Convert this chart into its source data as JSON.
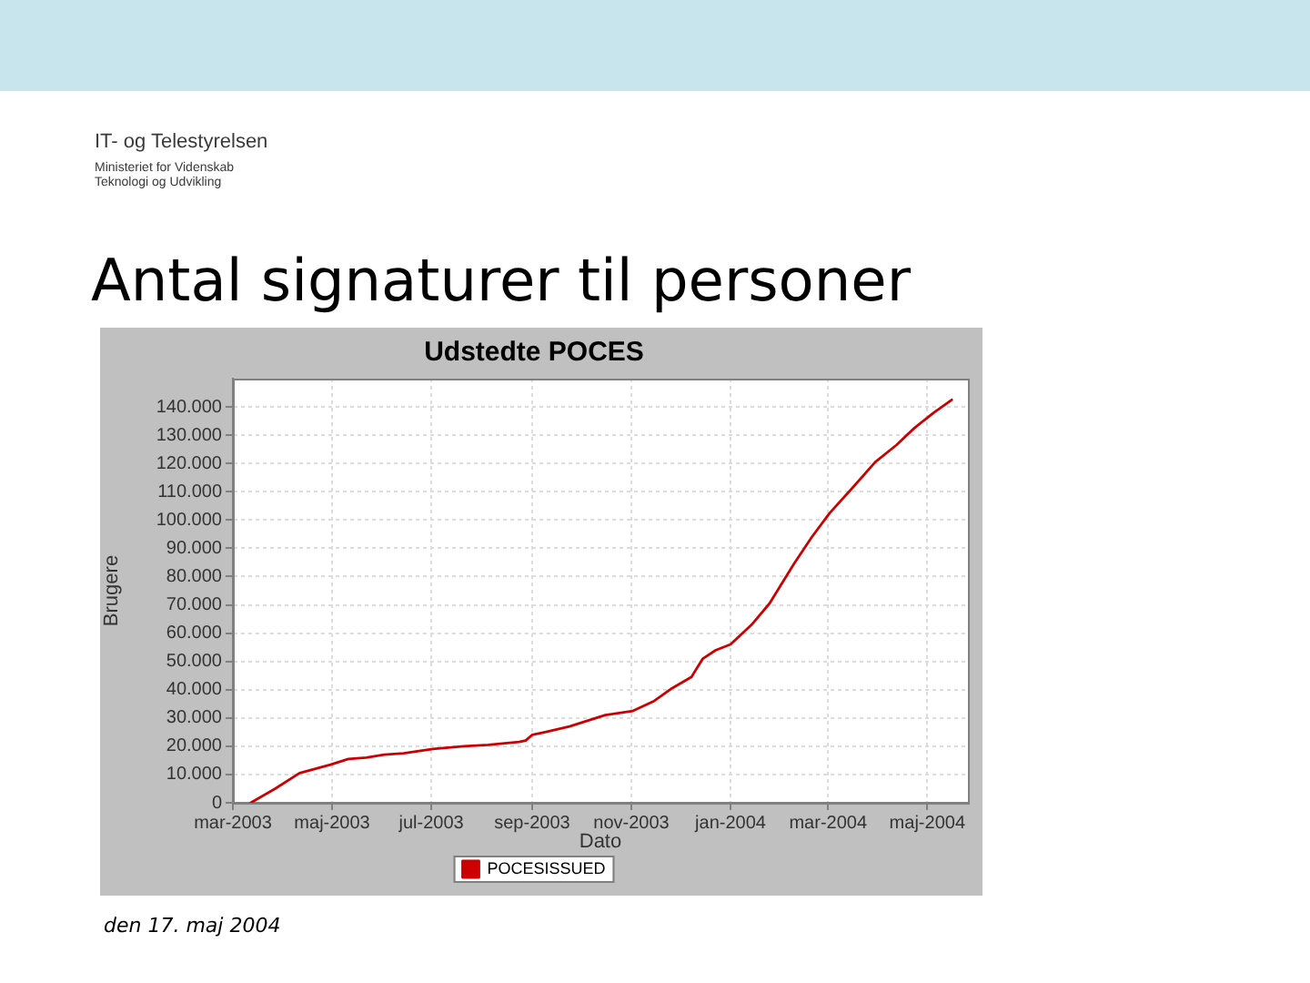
{
  "chart_data": {
    "type": "line",
    "title": "Antal signaturer til personer",
    "subtitle": "Udstedte POCES",
    "xlabel": "Dato",
    "ylabel": "Brugere",
    "x": [
      "2003-03-12",
      "2003-03-27",
      "2003-04-11",
      "2003-04-30",
      "2003-05-11",
      "2003-05-22",
      "2003-06-02",
      "2003-06-14",
      "2003-07-02",
      "2003-07-21",
      "2003-08-05",
      "2003-08-24",
      "2003-08-28",
      "2003-09-01",
      "2003-09-09",
      "2003-09-24",
      "2003-10-05",
      "2003-10-16",
      "2003-11-02",
      "2003-11-15",
      "2003-11-26",
      "2003-12-08",
      "2003-12-15",
      "2003-12-23",
      "2004-01-01",
      "2004-01-14",
      "2004-01-25",
      "2004-02-09",
      "2004-02-20",
      "2004-03-02",
      "2004-03-17",
      "2004-03-30",
      "2004-04-12",
      "2004-04-23",
      "2004-05-05",
      "2004-05-16"
    ],
    "series": [
      {
        "name": "POCESISSUED",
        "color": "#cc0000",
        "values": [
          0,
          5000,
          10500,
          13500,
          15500,
          16000,
          17000,
          17500,
          19000,
          20000,
          20500,
          21500,
          22000,
          24000,
          25000,
          27000,
          29000,
          31000,
          32500,
          36000,
          40500,
          44500,
          51000,
          54000,
          56000,
          63000,
          70500,
          84500,
          94000,
          102500,
          112000,
          120500,
          126500,
          132500,
          138000,
          142500
        ]
      }
    ],
    "xlim": [
      "2003-03-01",
      "2004-05-26"
    ],
    "xticks": [
      {
        "value": "2003-03-01",
        "label": "mar-2003"
      },
      {
        "value": "2003-05-01",
        "label": "maj-2003"
      },
      {
        "value": "2003-07-01",
        "label": "jul-2003"
      },
      {
        "value": "2003-09-01",
        "label": "sep-2003"
      },
      {
        "value": "2003-11-01",
        "label": "nov-2003"
      },
      {
        "value": "2004-01-01",
        "label": "jan-2004"
      },
      {
        "value": "2004-03-01",
        "label": "mar-2004"
      },
      {
        "value": "2004-05-01",
        "label": "maj-2004"
      }
    ],
    "ylim": [
      0,
      150000
    ],
    "yticks": [
      0,
      {
        "value": 10000,
        "label": "10.000"
      },
      {
        "value": 20000,
        "label": "20.000"
      },
      {
        "value": 30000,
        "label": "30.000"
      },
      {
        "value": 40000,
        "label": "40.000"
      },
      {
        "value": 50000,
        "label": "50.000"
      },
      {
        "value": 60000,
        "label": "60.000"
      },
      {
        "value": 70000,
        "label": "70.000"
      },
      {
        "value": 80000,
        "label": "80.000"
      },
      {
        "value": 90000,
        "label": "90.000"
      },
      {
        "value": 100000,
        "label": "100.000"
      },
      {
        "value": 110000,
        "label": "110.000"
      },
      {
        "value": 120000,
        "label": "120.000"
      },
      {
        "value": 130000,
        "label": "130.000"
      },
      {
        "value": 140000,
        "label": "140.000"
      }
    ],
    "grid": true,
    "legend": "bottom",
    "marker": "none",
    "annotations": [
      "IT- og Telestyrelsen",
      "Ministeriet for Videnskab",
      "Teknologi og Udvikling",
      "den 17. maj 2004"
    ]
  }
}
